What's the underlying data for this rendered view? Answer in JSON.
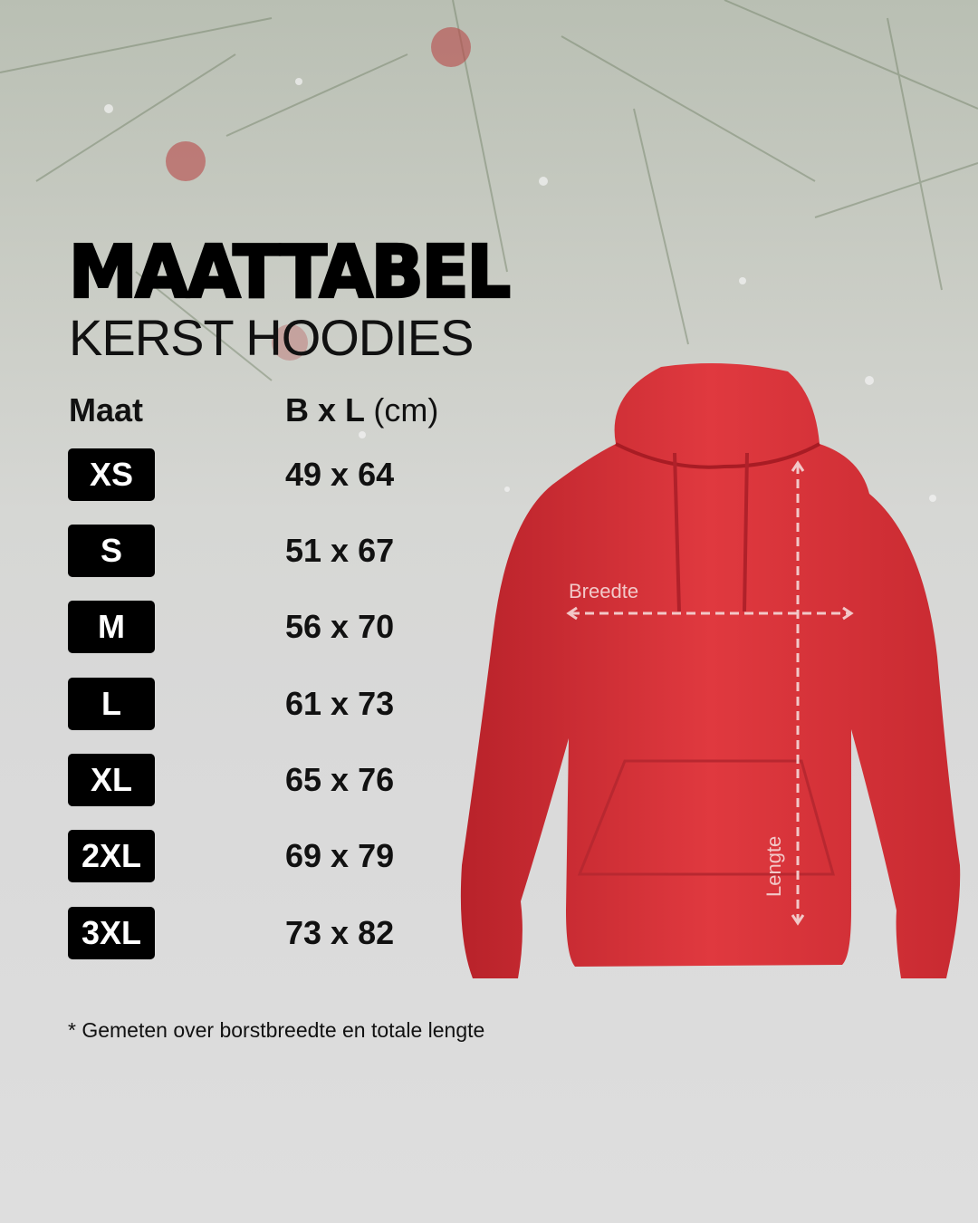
{
  "header": {
    "title": "MAATTABEL",
    "subtitle": "KERST HOODIES"
  },
  "table": {
    "col_size": "Maat",
    "col_dims": "B x L",
    "col_unit": "(cm)",
    "rows": [
      {
        "size": "XS",
        "dims": "49 x 64"
      },
      {
        "size": "S",
        "dims": "51 x 67"
      },
      {
        "size": "M",
        "dims": "56 x 70"
      },
      {
        "size": "L",
        "dims": "61 x 73"
      },
      {
        "size": "XL",
        "dims": "65 x 76"
      },
      {
        "size": "2XL",
        "dims": "69 x 79"
      },
      {
        "size": "3XL",
        "dims": "73 x 82"
      }
    ]
  },
  "diagram": {
    "width_label": "Breedte",
    "length_label": "Lengte",
    "hoodie_color": "#d9343a"
  },
  "footnote": "* Gemeten over borstbreedte en totale lengte"
}
